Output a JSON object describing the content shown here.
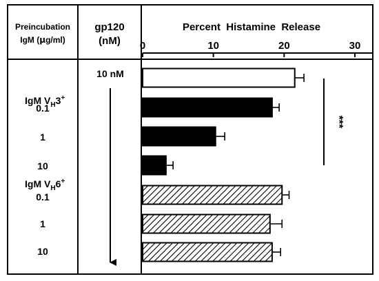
{
  "header": {
    "col1_line1": "Preincubation",
    "col1_line2_pre": "IgM (",
    "col1_line2_mu": "μ",
    "col1_line2_post": "g/ml)",
    "col2_line1": "gp120",
    "col2_line2": "(nM)"
  },
  "rows": [
    {
      "label": "",
      "gp120": "10 nM"
    },
    {
      "label": "0.1",
      "group": {
        "base": "IgM V",
        "sub": "H",
        "num": "3",
        "sup": "+"
      }
    },
    {
      "label": "1"
    },
    {
      "label": "10"
    },
    {
      "label": "0.1",
      "group": {
        "base": "IgM V",
        "sub": "H",
        "num": "6",
        "sup": "+"
      }
    },
    {
      "label": "1"
    },
    {
      "label": "10"
    }
  ],
  "significance": "***",
  "chart_data": {
    "type": "bar",
    "orientation": "horizontal",
    "title": "Percent  Histamine  Release",
    "xlim": [
      0,
      30
    ],
    "xticks": [
      0,
      10,
      20,
      30
    ],
    "grid": false,
    "categories": [
      "10 nM",
      "IgM VH3+ 0.1",
      "1",
      "10",
      "IgM VH6+ 0.1",
      "1",
      "10"
    ],
    "values": [
      21.5,
      18.3,
      10.3,
      3.3,
      19.7,
      18.0,
      18.3
    ],
    "errors": [
      1.3,
      1.0,
      1.3,
      1.0,
      1.0,
      1.7,
      1.2
    ],
    "fills": [
      "white",
      "black",
      "black",
      "black",
      "hatched",
      "hatched",
      "hatched"
    ]
  }
}
